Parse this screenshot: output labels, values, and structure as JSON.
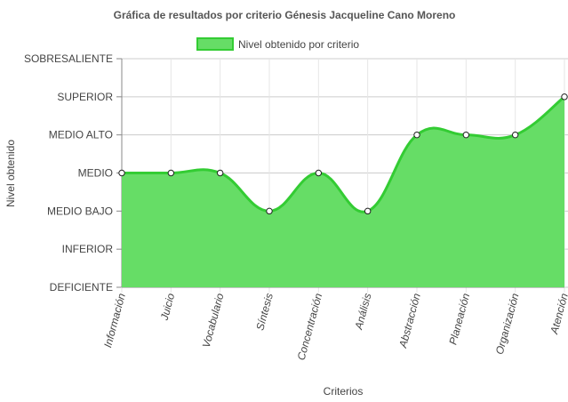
{
  "chart_data": {
    "type": "area",
    "title": "Gráfica de resultados por criterio Génesis Jacqueline Cano Moreno",
    "xlabel": "Criterios",
    "ylabel": "Nivel obtenido",
    "y_levels": [
      "DEFICIENTE",
      "INFERIOR",
      "MEDIO BAJO",
      "MEDIO",
      "MEDIO ALTO",
      "SUPERIOR",
      "SOBRESALIENTE"
    ],
    "ylim": [
      0,
      6
    ],
    "categories": [
      "Información",
      "Juicio",
      "Vocabulario",
      "Síntesis",
      "Concentración",
      "Análisis",
      "Abstracción",
      "Planeación",
      "Organización",
      "Atención"
    ],
    "series": [
      {
        "name": "Nivel obtenido por criterio",
        "values": [
          3,
          3,
          3,
          2,
          3,
          2,
          4,
          4,
          4,
          5
        ]
      }
    ],
    "legend_position": "top",
    "grid": true,
    "colors": {
      "fill": "#66dd66",
      "line": "#33cc33",
      "grid": "#cccccc",
      "axis": "#888888"
    }
  }
}
